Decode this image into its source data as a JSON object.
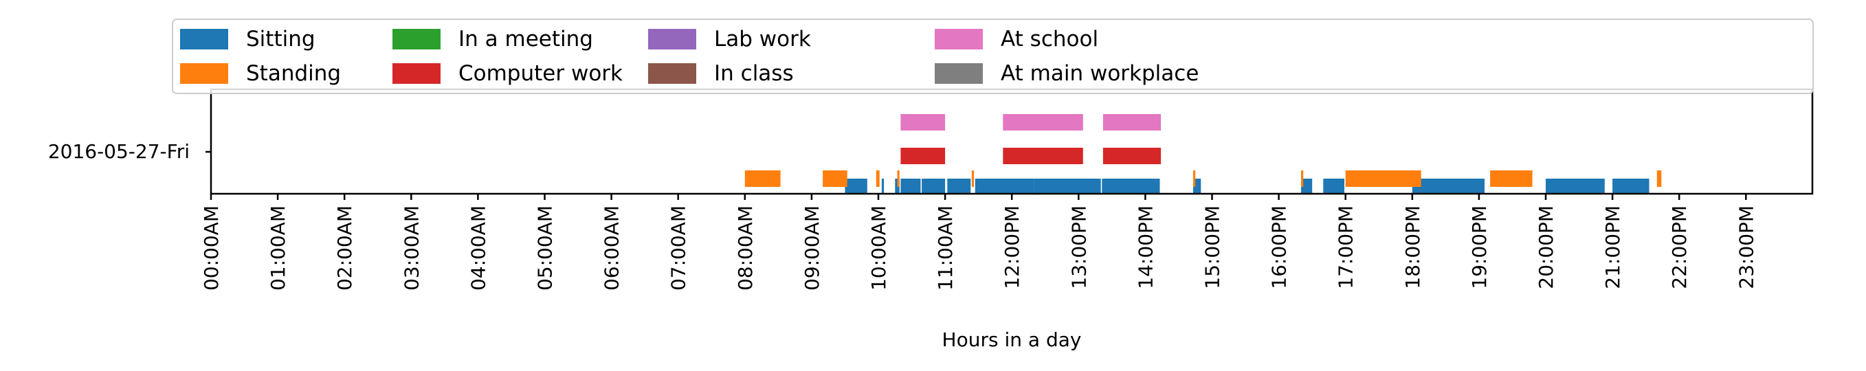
{
  "chart_data": {
    "type": "timeline",
    "title": "",
    "xlabel": "Hours in a day",
    "ylabel": "",
    "xlim_hours": [
      0,
      24
    ],
    "y_category": "2016-05-27-Fri",
    "x_ticks": [
      "00:00AM",
      "01:00AM",
      "02:00AM",
      "03:00AM",
      "04:00AM",
      "05:00AM",
      "06:00AM",
      "07:00AM",
      "08:00AM",
      "09:00AM",
      "10:00AM",
      "11:00AM",
      "12:00PM",
      "13:00PM",
      "14:00PM",
      "15:00PM",
      "16:00PM",
      "17:00PM",
      "18:00PM",
      "19:00PM",
      "20:00PM",
      "21:00PM",
      "22:00PM",
      "23:00PM"
    ],
    "legend_position": "top",
    "legend_columns": 7,
    "series": [
      {
        "name": "Sitting",
        "color": "#1f77b4",
        "intervals": [
          [
            "09:30",
            "09:50"
          ],
          [
            "10:03",
            "10:05"
          ],
          [
            "10:15",
            "10:19"
          ],
          [
            "10:20",
            "10:38"
          ],
          [
            "10:39",
            "11:00"
          ],
          [
            "11:02",
            "11:23"
          ],
          [
            "11:27",
            "12:20"
          ],
          [
            "12:20",
            "13:20"
          ],
          [
            "13:21",
            "14:13"
          ],
          [
            "14:43",
            "14:50"
          ],
          [
            "16:20",
            "16:30"
          ],
          [
            "16:40",
            "16:59"
          ],
          [
            "18:00",
            "19:05"
          ],
          [
            "20:00",
            "20:53"
          ],
          [
            "21:00",
            "21:33"
          ]
        ]
      },
      {
        "name": "Standing",
        "color": "#ff7f0e",
        "intervals": [
          [
            "08:00",
            "08:32"
          ],
          [
            "09:10",
            "09:32"
          ],
          [
            "09:58",
            "10:01"
          ],
          [
            "10:17",
            "10:19"
          ],
          [
            "11:24",
            "11:26"
          ],
          [
            "14:43",
            "14:45"
          ],
          [
            "16:20",
            "16:22"
          ],
          [
            "17:00",
            "18:08"
          ],
          [
            "19:10",
            "19:48"
          ],
          [
            "21:40",
            "21:44"
          ]
        ]
      },
      {
        "name": "In a meeting",
        "color": "#2ca02c",
        "intervals": []
      },
      {
        "name": "Computer work",
        "color": "#d62728",
        "intervals": [
          [
            "10:20",
            "11:00"
          ],
          [
            "11:52",
            "13:04"
          ],
          [
            "13:22",
            "14:14"
          ]
        ]
      },
      {
        "name": "Lab work",
        "color": "#9467bd",
        "intervals": []
      },
      {
        "name": "In class",
        "color": "#8c564b",
        "intervals": []
      },
      {
        "name": "At school",
        "color": "#e377c2",
        "intervals": [
          [
            "10:20",
            "11:00"
          ],
          [
            "11:52",
            "13:04"
          ],
          [
            "13:22",
            "14:14"
          ]
        ]
      },
      {
        "name": "At main workplace",
        "color": "#7f7f7f",
        "intervals": []
      }
    ]
  }
}
